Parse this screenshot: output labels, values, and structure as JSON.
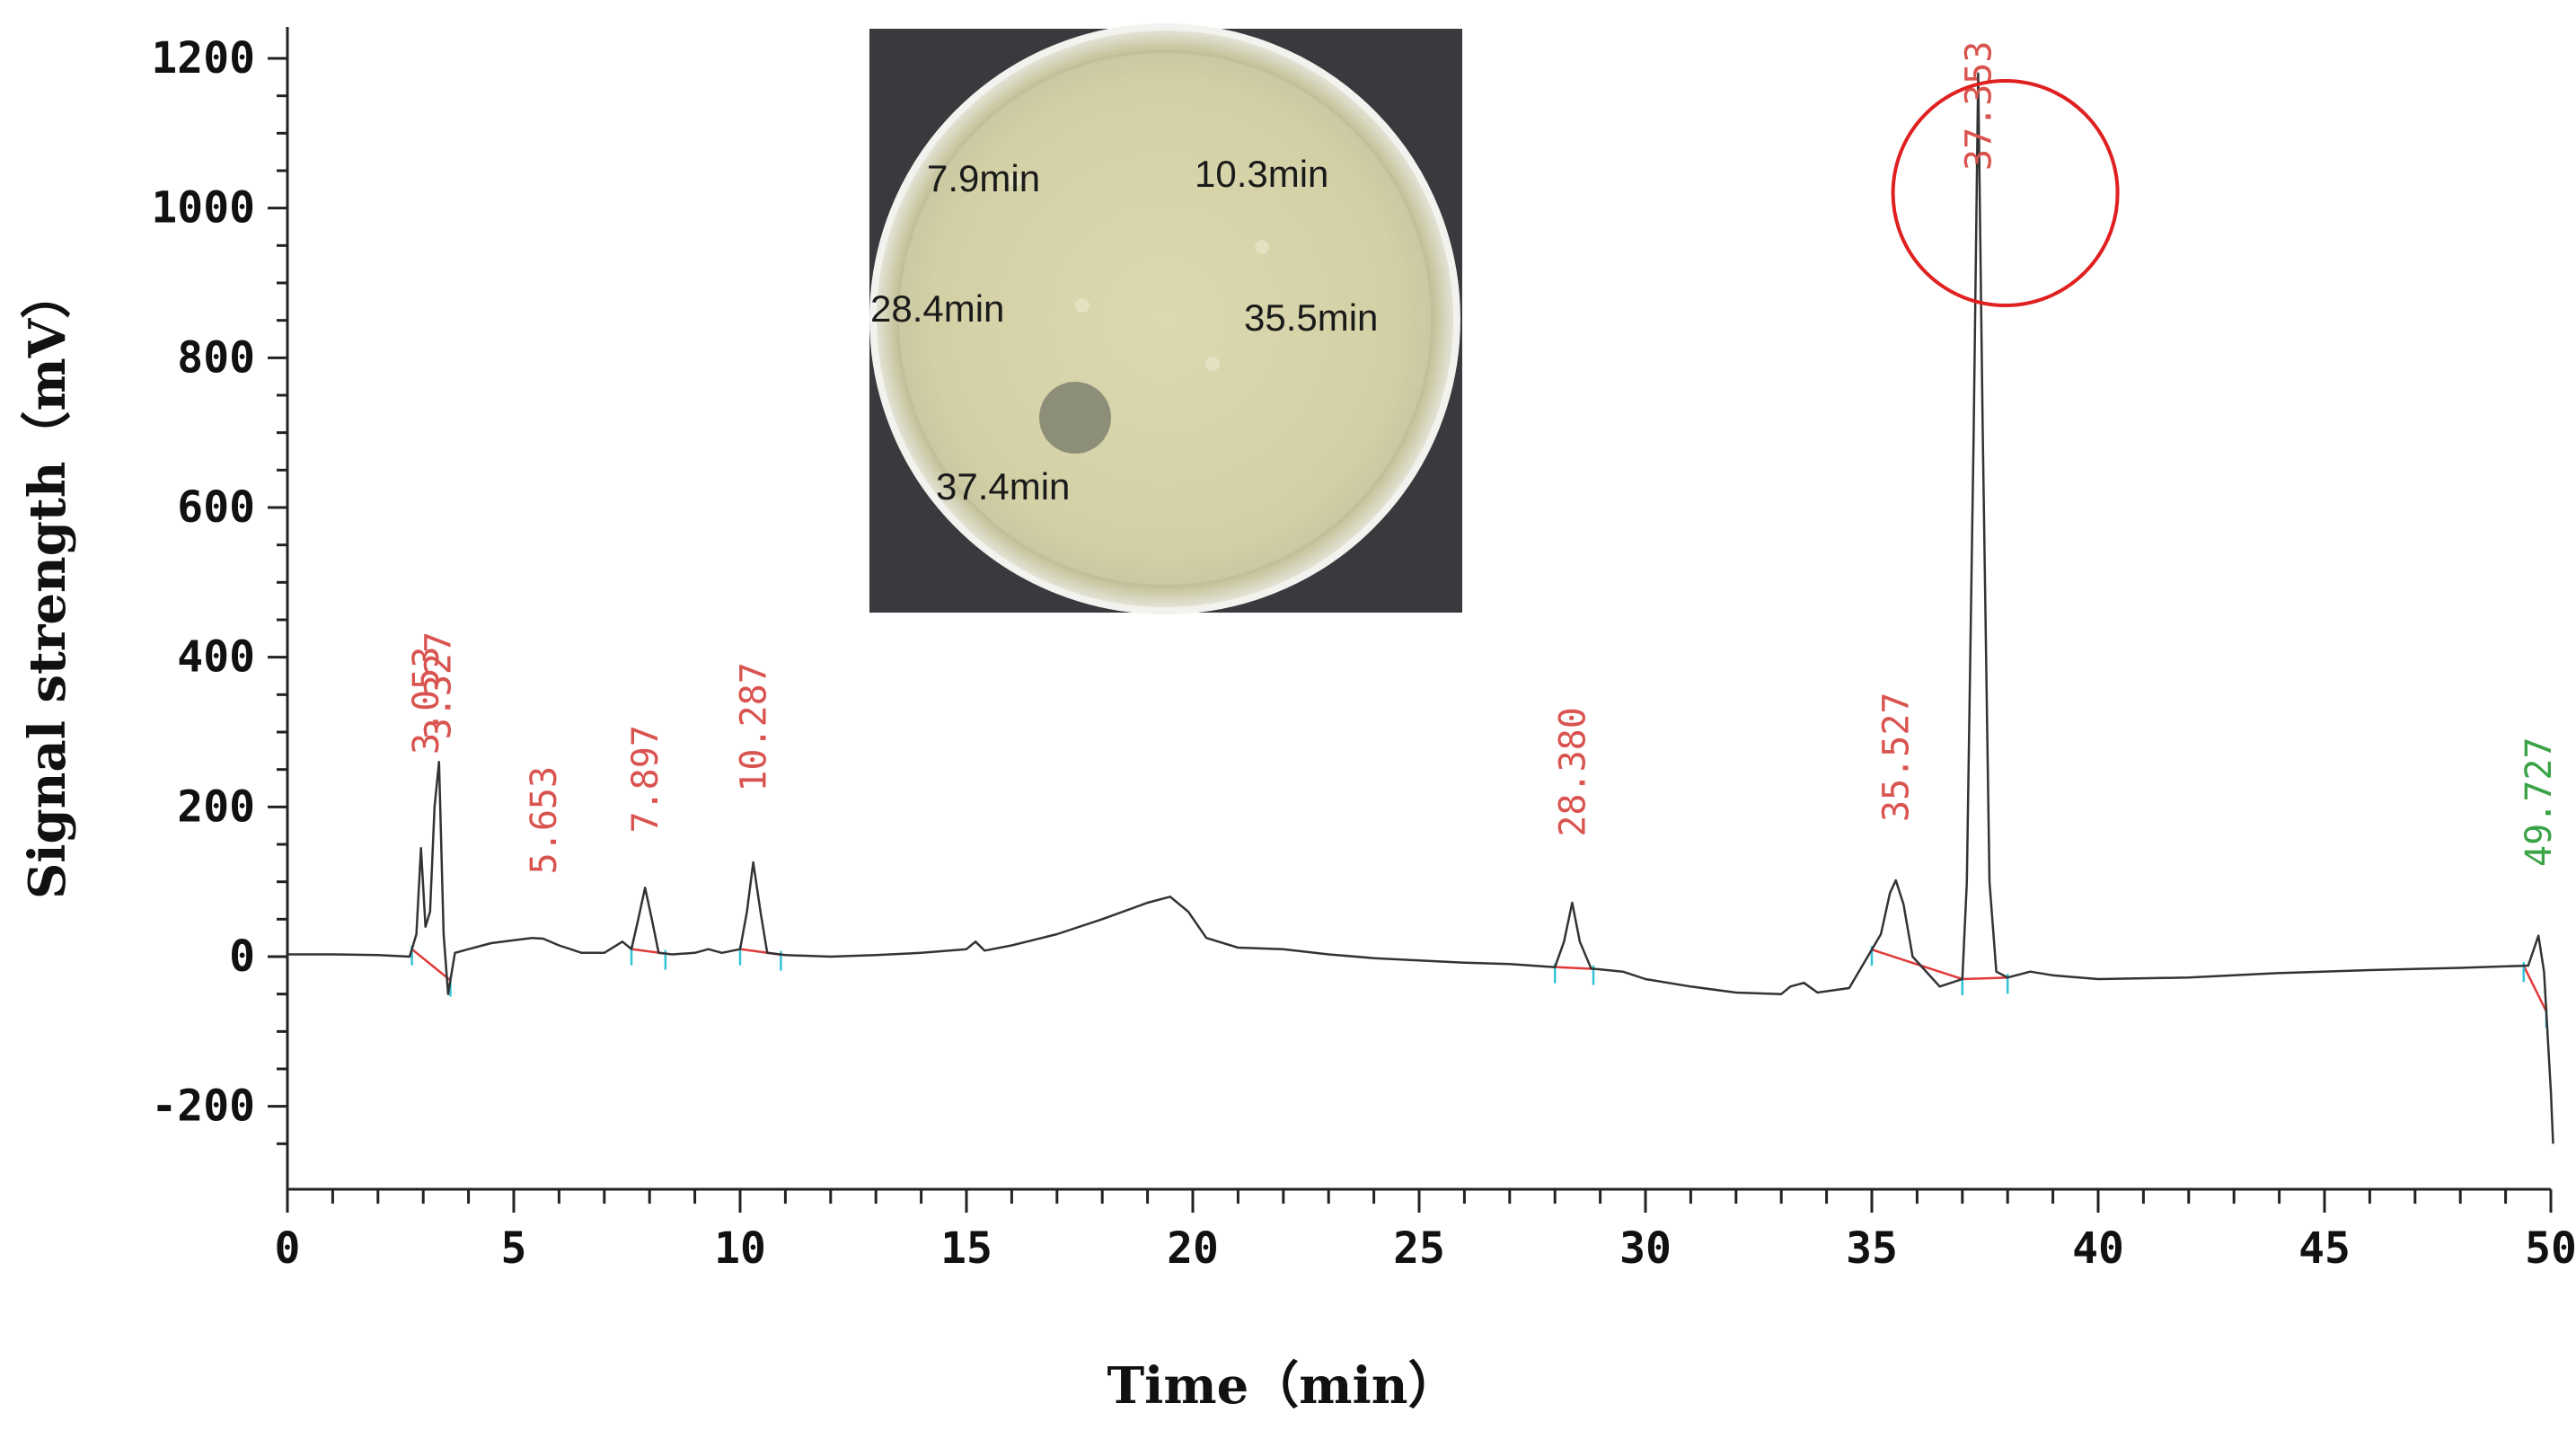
{
  "chart_data": {
    "type": "line",
    "xlabel": "Time（min）",
    "ylabel": "Signal strength（mV）",
    "xlim": [
      0,
      50
    ],
    "ylim": [
      -300,
      1200
    ],
    "x_ticks": [
      0,
      5,
      10,
      15,
      20,
      25,
      30,
      35,
      40,
      45,
      50
    ],
    "y_ticks": [
      -200,
      0,
      200,
      400,
      600,
      800,
      1000,
      1200
    ],
    "grid": false,
    "series": [
      {
        "color": "#333333",
        "x": [
          0,
          1,
          2,
          2.7,
          2.85,
          2.95,
          3.05,
          3.15,
          3.25,
          3.35,
          3.45,
          3.55,
          3.7,
          4.0,
          4.5,
          5.0,
          5.4,
          5.65,
          6.0,
          6.5,
          7.0,
          7.4,
          7.6,
          7.75,
          7.9,
          8.05,
          8.2,
          8.5,
          9.0,
          9.3,
          9.6,
          10.0,
          10.15,
          10.29,
          10.45,
          10.6,
          11.0,
          12.0,
          13.0,
          14.0,
          15.0,
          15.2,
          15.4,
          16.0,
          17.0,
          18.0,
          19.0,
          19.5,
          19.9,
          20.3,
          21.0,
          22.0,
          23.0,
          24.0,
          25.0,
          26.0,
          27.0,
          28.0,
          28.2,
          28.38,
          28.55,
          28.8,
          29.5,
          30.0,
          31.0,
          32.0,
          33.0,
          33.2,
          33.5,
          33.8,
          34.5,
          35.2,
          35.4,
          35.53,
          35.7,
          35.9,
          36.5,
          37.0,
          37.1,
          37.25,
          37.35,
          37.45,
          37.6,
          37.75,
          38.0,
          38.5,
          39.0,
          40.0,
          42.0,
          44.0,
          46.0,
          48.0,
          49.5,
          49.727,
          49.85,
          50.0,
          50.05
        ],
        "y": [
          3,
          3,
          2,
          0,
          30,
          145,
          40,
          60,
          200,
          260,
          30,
          -50,
          5,
          10,
          18,
          22,
          25,
          24,
          15,
          5,
          5,
          20,
          10,
          50,
          92,
          50,
          5,
          3,
          5,
          10,
          5,
          10,
          60,
          126,
          60,
          5,
          2,
          0,
          2,
          5,
          10,
          20,
          8,
          15,
          30,
          50,
          72,
          80,
          60,
          25,
          12,
          10,
          3,
          -2,
          -5,
          -8,
          -10,
          -14,
          20,
          72,
          20,
          -16,
          -20,
          -30,
          -40,
          -48,
          -50,
          -40,
          -35,
          -48,
          -42,
          30,
          85,
          102,
          70,
          0,
          -40,
          -30,
          100,
          700,
          1180,
          700,
          100,
          -20,
          -28,
          -20,
          -25,
          -30,
          -28,
          -22,
          -18,
          -15,
          -12,
          28,
          -20,
          -180,
          -250
        ]
      }
    ],
    "peaks": [
      {
        "label": "3.053",
        "x": 3.053,
        "color": "#d9534f"
      },
      {
        "label": "3.327",
        "x": 3.327,
        "color": "#d9534f"
      },
      {
        "label": "5.653",
        "x": 5.653,
        "color": "#d9534f"
      },
      {
        "label": "7.897",
        "x": 7.897,
        "color": "#d9534f"
      },
      {
        "label": "10.287",
        "x": 10.287,
        "color": "#d9534f"
      },
      {
        "label": "28.380",
        "x": 28.38,
        "color": "#d9534f"
      },
      {
        "label": "35.527",
        "x": 35.527,
        "color": "#d9534f"
      },
      {
        "label": "37.353",
        "x": 37.353,
        "color": "#d9534f"
      },
      {
        "label": "49.727",
        "x": 49.727,
        "color": "#3aa346"
      }
    ],
    "highlight": {
      "x": 37.353,
      "color": "#e02020"
    },
    "inset": {
      "labels": [
        "7.9min",
        "10.3min",
        "28.4min",
        "35.5min",
        "37.4min"
      ]
    }
  }
}
